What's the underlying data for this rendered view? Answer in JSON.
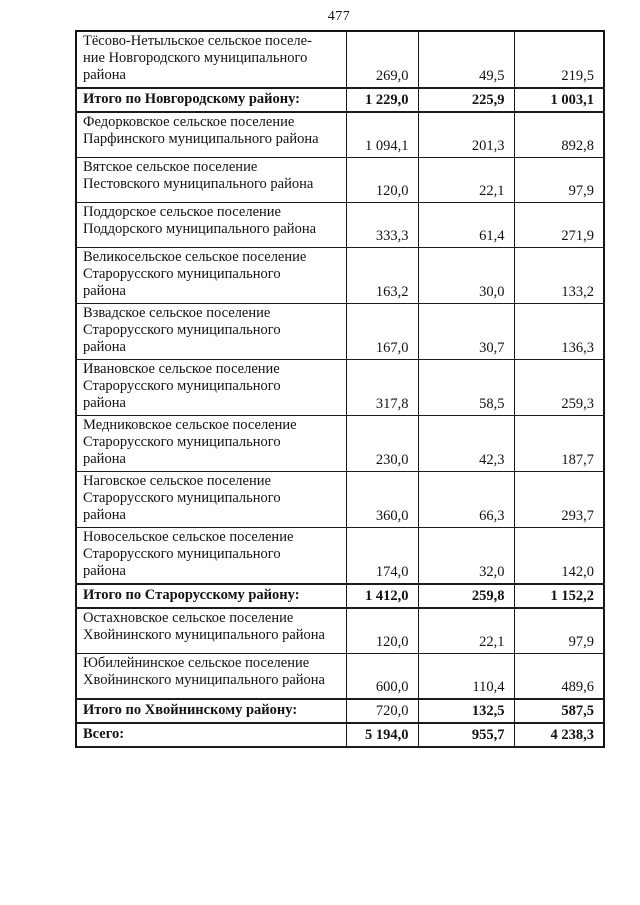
{
  "page": {
    "number": "477",
    "background": "#ffffff",
    "ink_color": "#121212",
    "border_color": "#1b1b1b"
  },
  "table": {
    "columns": [
      "settlement",
      "value1",
      "value2",
      "value3"
    ],
    "rows": [
      {
        "name": "Тёсово-Нетыльское сельское поселе-\nние Новгородского муниципального\nрайона",
        "values": [
          "269,0",
          "49,5",
          "219,5"
        ],
        "bold": false
      },
      {
        "name": "Итого по Новгородскому району:",
        "values": [
          "1 229,0",
          "225,9",
          "1 003,1"
        ],
        "bold": true
      },
      {
        "name": "Федорковское сельское поселение\nПарфинского муниципального района",
        "values": [
          "1 094,1",
          "201,3",
          "892,8"
        ],
        "bold": false
      },
      {
        "name": "Вятское сельское поселение\nПестовского муниципального района",
        "values": [
          "120,0",
          "22,1",
          "97,9"
        ],
        "bold": false
      },
      {
        "name": "Поддорское сельское поселение\nПоддорского муниципального района",
        "values": [
          "333,3",
          "61,4",
          "271,9"
        ],
        "bold": false
      },
      {
        "name": "Великосельское сельское поселение\nСтарорусского муниципального\nрайона",
        "values": [
          "163,2",
          "30,0",
          "133,2"
        ],
        "bold": false
      },
      {
        "name": "Взвадское сельское поселение\nСтарорусского муниципального\nрайона",
        "values": [
          "167,0",
          "30,7",
          "136,3"
        ],
        "bold": false
      },
      {
        "name": "Ивановское сельское поселение\nСтарорусского муниципального\nрайона",
        "values": [
          "317,8",
          "58,5",
          "259,3"
        ],
        "bold": false
      },
      {
        "name": "Медниковское сельское поселение\nСтарорусского муниципального\nрайона",
        "values": [
          "230,0",
          "42,3",
          "187,7"
        ],
        "bold": false
      },
      {
        "name": "Наговское сельское поселение\nСтарорусского муниципального\nрайона",
        "values": [
          "360,0",
          "66,3",
          "293,7"
        ],
        "bold": false
      },
      {
        "name": "Новосельское сельское поселение\nСтарорусского муниципального\nрайона",
        "values": [
          "174,0",
          "32,0",
          "142,0"
        ],
        "bold": false
      },
      {
        "name": "Итого по Старорусскому району:",
        "values": [
          "1 412,0",
          "259,8",
          "1 152,2"
        ],
        "bold": true
      },
      {
        "name": "Остахновское сельское поселение\nХвойнинского муниципального района",
        "values": [
          "120,0",
          "22,1",
          "97,9"
        ],
        "bold": false
      },
      {
        "name": "Юбилейнинское сельское поселение\nХвойнинского муниципального района",
        "values": [
          "600,0",
          "110,4",
          "489,6"
        ],
        "bold": false
      },
      {
        "name": "Итого по Хвойнинскому району:",
        "values": [
          "720,0",
          "132,5",
          "587,5"
        ],
        "bold": true,
        "value_bold": [
          false,
          true,
          true
        ]
      },
      {
        "name": "Всего:",
        "values": [
          "5 194,0",
          "955,7",
          "4 238,3"
        ],
        "bold": true
      }
    ]
  }
}
